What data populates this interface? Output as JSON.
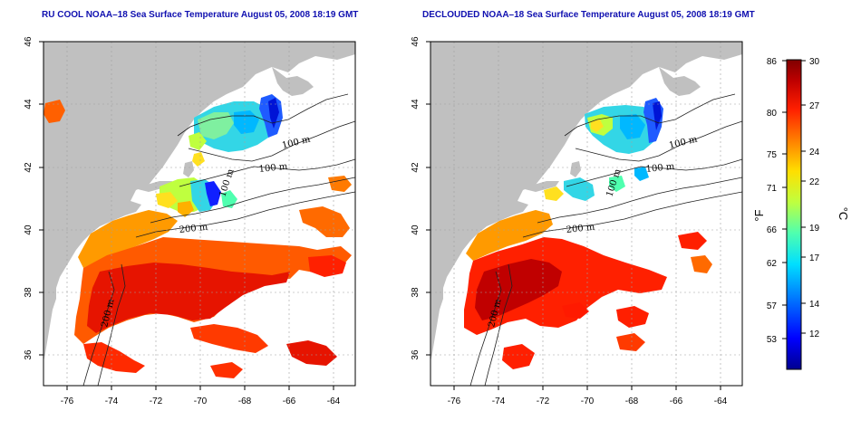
{
  "panels": [
    {
      "id": "left",
      "title": "RU COOL NOAA–18 Sea Surface Temperature August 05, 2008 18:19 GMT",
      "variant": "raw"
    },
    {
      "id": "right",
      "title": "DECLOUDED NOAA–18 Sea Surface Temperature August 05, 2008 18:19 GMT",
      "variant": "declouded"
    }
  ],
  "axes": {
    "lon_ticks": [
      "-76",
      "-74",
      "-72",
      "-70",
      "-68",
      "-66",
      "-64"
    ],
    "lat_ticks": [
      "46",
      "44",
      "42",
      "40",
      "38",
      "36"
    ],
    "lon_range": [
      -77,
      -63
    ],
    "lat_range": [
      35,
      46
    ]
  },
  "isobaths": [
    "100 m",
    "100 m",
    "100 m",
    "200 m",
    "200 m"
  ],
  "colorbar": {
    "fahrenheit_ticks": [
      "86",
      "80",
      "75",
      "71",
      "66",
      "62",
      "57",
      "53"
    ],
    "celsius_ticks": [
      "30",
      "27",
      "24",
      "22",
      "19",
      "17",
      "14",
      "12"
    ],
    "fahrenheit_unit": "°F",
    "celsius_unit": "°C",
    "colors": [
      "#00008f",
      "#0000ff",
      "#006fff",
      "#00dfff",
      "#4fffaf",
      "#bfff3f",
      "#ffdf00",
      "#ff7f00",
      "#ff1f00",
      "#c00000",
      "#800000"
    ]
  },
  "colors": {
    "land": "#c0c0c0",
    "water": "#ffffff",
    "contour": "#202020",
    "title": "#1010b0"
  }
}
